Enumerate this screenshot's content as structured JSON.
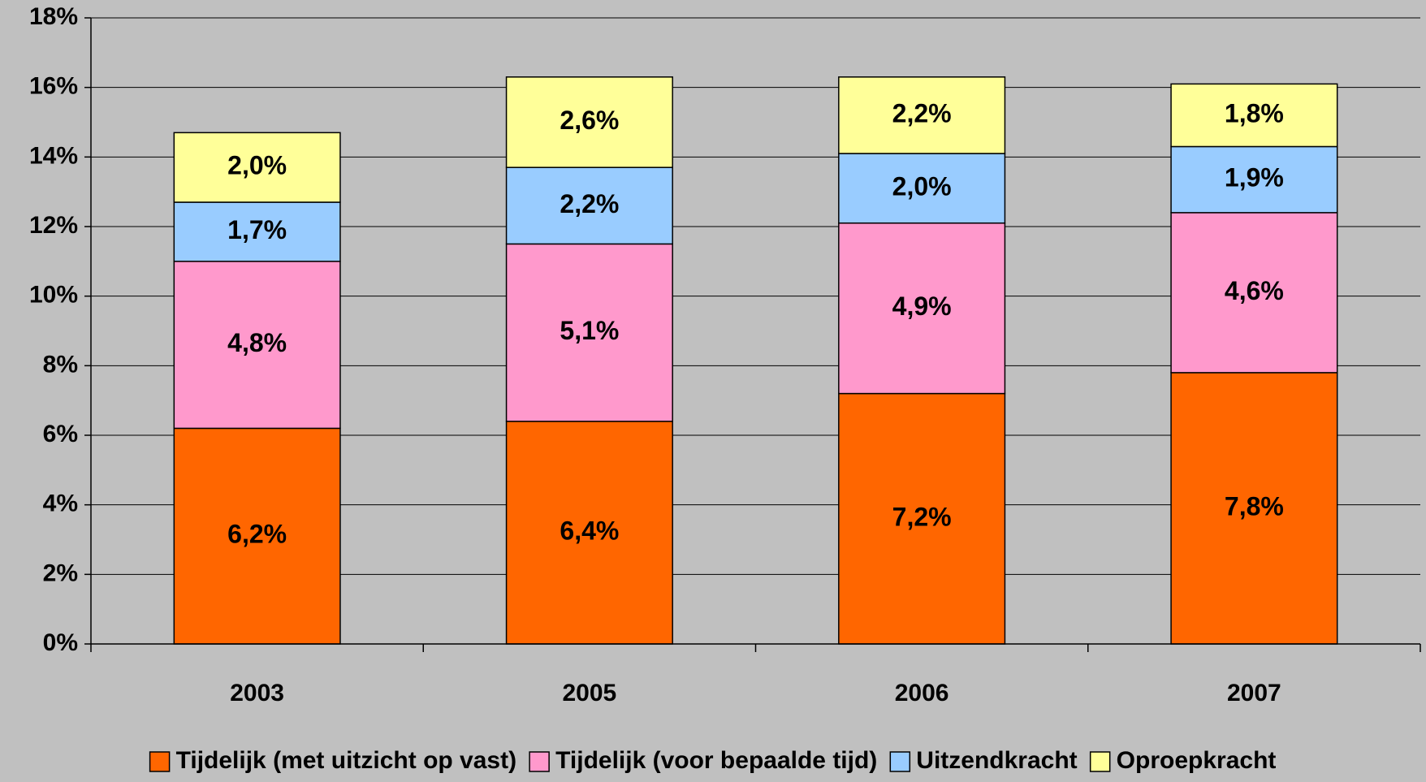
{
  "chart_data": {
    "type": "stacked_bar",
    "categories": [
      "2003",
      "2005",
      "2006",
      "2007"
    ],
    "series": [
      {
        "name": "Tijdelijk (met uitzicht op vast)",
        "color": "#ff6600",
        "values": [
          6.2,
          6.4,
          7.2,
          7.8
        ],
        "value_labels": [
          "6,2%",
          "6,4%",
          "7,2%",
          "7,8%"
        ]
      },
      {
        "name": "Tijdelijk (voor bepaalde tijd)",
        "color": "#ff99cc",
        "values": [
          4.8,
          5.1,
          4.9,
          4.6
        ],
        "value_labels": [
          "4,8%",
          "5,1%",
          "4,9%",
          "4,6%"
        ]
      },
      {
        "name": "Uitzendkracht",
        "color": "#99ccff",
        "values": [
          1.7,
          2.2,
          2.0,
          1.9
        ],
        "value_labels": [
          "1,7%",
          "2,2%",
          "2,0%",
          "1,9%"
        ]
      },
      {
        "name": "Oproepkracht",
        "color": "#ffff99",
        "values": [
          2.0,
          2.6,
          2.2,
          1.8
        ],
        "value_labels": [
          "2,0%",
          "2,6%",
          "2,2%",
          "1,8%"
        ]
      }
    ],
    "ylim": [
      0,
      18
    ],
    "yticks": [
      {
        "value": 0,
        "label": "0%"
      },
      {
        "value": 2,
        "label": "2%"
      },
      {
        "value": 4,
        "label": "4%"
      },
      {
        "value": 6,
        "label": "6%"
      },
      {
        "value": 8,
        "label": "8%"
      },
      {
        "value": 10,
        "label": "10%"
      },
      {
        "value": 12,
        "label": "12%"
      },
      {
        "value": 14,
        "label": "14%"
      },
      {
        "value": 16,
        "label": "16%"
      },
      {
        "value": 18,
        "label": "18%"
      }
    ],
    "grid": true,
    "legend": "bottom"
  }
}
